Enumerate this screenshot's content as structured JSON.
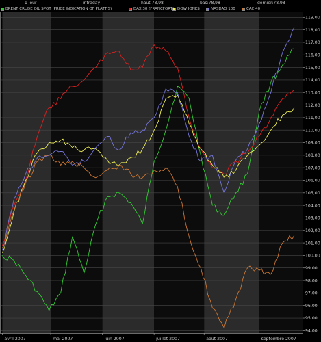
{
  "header": {
    "period": "1 Jour",
    "mode": "intraday",
    "high": "haut:78,98",
    "low": "bas:78,98",
    "last": "dernier:78,98"
  },
  "chart_data": {
    "type": "line",
    "x": [
      "2007-04-02",
      "2007-04-09",
      "2007-04-16",
      "2007-04-23",
      "2007-04-30",
      "2007-05-07",
      "2007-05-14",
      "2007-05-21",
      "2007-05-28",
      "2007-06-04",
      "2007-06-11",
      "2007-06-18",
      "2007-06-25",
      "2007-07-02",
      "2007-07-09",
      "2007-07-16",
      "2007-07-23",
      "2007-07-30",
      "2007-08-06",
      "2007-08-13",
      "2007-08-20",
      "2007-08-27",
      "2007-09-03",
      "2007-09-10",
      "2007-09-17",
      "2007-09-24"
    ],
    "xticks": [
      {
        "date": "2007-04-02",
        "label": "avril 2007"
      },
      {
        "date": "2007-05-01",
        "label": "mai 2007"
      },
      {
        "date": "2007-06-01",
        "label": "juin 2007"
      },
      {
        "date": "2007-07-02",
        "label": "juillet 2007"
      },
      {
        "date": "2007-08-01",
        "label": "août 2007"
      },
      {
        "date": "2007-09-03",
        "label": "septembre 2007"
      }
    ],
    "xlim": [
      "2007-04-01",
      "2007-09-29"
    ],
    "ylim": [
      93.8,
      119.4
    ],
    "yticks": [
      94,
      95,
      96,
      97,
      98,
      99,
      100,
      101,
      102,
      103,
      104,
      105,
      106,
      107,
      108,
      109,
      110,
      111,
      112,
      113,
      114,
      115,
      116,
      117,
      118,
      119
    ],
    "ytick_labels": [
      "94,00",
      "95,00",
      "96,00",
      "97,00",
      "98,00",
      "99,00",
      "100,00",
      "101,00",
      "102,00",
      "103,00",
      "104,00",
      "105,00",
      "106,00",
      "107,00",
      "108,00",
      "109,00",
      "110,00",
      "111,00",
      "112,00",
      "113,00",
      "114,00",
      "115,00",
      "116,00",
      "117,00",
      "118,00",
      "119,00"
    ],
    "series": [
      {
        "name": "BRENT CRUDE OIL SPOT (PRICE INDICATION OF PLATT'S)",
        "color": "#33cc33",
        "values": [
          100.0,
          99.6,
          98.4,
          97.1,
          95.6,
          97.0,
          101.5,
          98.6,
          102.5,
          104.7,
          105.0,
          104.2,
          102.5,
          107.5,
          110.0,
          113.5,
          112.5,
          108.0,
          104.0,
          103.2,
          105.0,
          106.5,
          111.5,
          113.8,
          115.2,
          116.5
        ]
      },
      {
        "name": "DAX 30 (FRANCFORT)",
        "color": "#dd2222",
        "values": [
          100.8,
          104.0,
          106.0,
          109.5,
          111.8,
          112.5,
          113.5,
          114.0,
          115.0,
          116.2,
          116.3,
          114.8,
          115.0,
          116.8,
          116.3,
          115.0,
          111.0,
          108.5,
          107.0,
          106.5,
          107.5,
          108.2,
          109.5,
          111.0,
          112.5,
          113.2
        ]
      },
      {
        "name": "DOW JONES",
        "color": "#eeee55",
        "values": [
          100.2,
          103.5,
          106.0,
          108.2,
          109.0,
          109.2,
          108.6,
          108.4,
          108.5,
          107.6,
          107.2,
          107.8,
          108.5,
          110.0,
          112.5,
          112.8,
          110.5,
          108.5,
          107.2,
          106.2,
          106.8,
          108.0,
          108.8,
          110.0,
          111.2,
          111.8
        ]
      },
      {
        "name": "NASDAQ 100",
        "color": "#7777dd",
        "values": [
          100.4,
          104.5,
          106.5,
          107.8,
          108.0,
          108.3,
          107.2,
          107.5,
          108.6,
          109.5,
          108.4,
          109.8,
          110.0,
          111.0,
          113.3,
          113.0,
          109.5,
          107.5,
          108.0,
          105.0,
          107.6,
          108.5,
          110.5,
          113.0,
          116.2,
          118.2
        ]
      },
      {
        "name": "CAC 40",
        "color": "#cc7733",
        "values": [
          100.6,
          103.6,
          105.8,
          107.5,
          108.0,
          107.2,
          107.5,
          107.0,
          106.2,
          106.8,
          107.2,
          106.5,
          106.2,
          106.8,
          107.0,
          105.5,
          101.5,
          99.0,
          95.8,
          94.2,
          96.5,
          99.0,
          98.8,
          98.5,
          101.0,
          101.6
        ]
      }
    ]
  }
}
